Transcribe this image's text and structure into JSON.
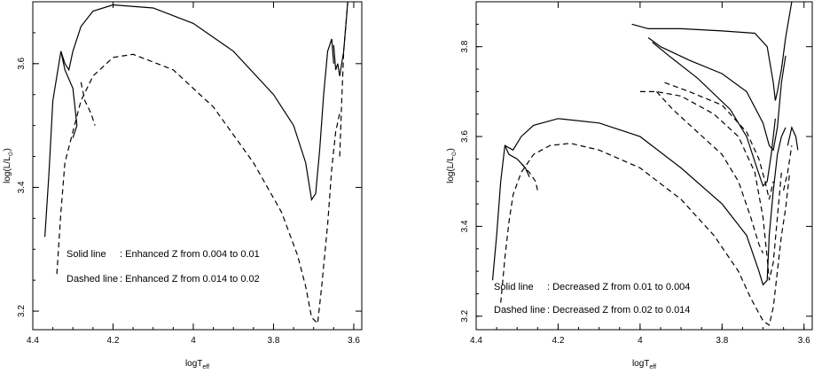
{
  "chart_data": [
    {
      "type": "line",
      "xlabel": "logT",
      "xlabel_sub": "eff",
      "ylabel": "log(L/L",
      "ylabel_sub": "⊙",
      "ylabel_close": ")",
      "xlim": [
        4.4,
        3.58
      ],
      "ylim": [
        3.17,
        3.7
      ],
      "x_ticks": [
        4.4,
        4.2,
        4.0,
        3.8,
        3.6
      ],
      "x_tick_labels": [
        "4.4",
        "4.2",
        "4",
        "3.8",
        "3.6"
      ],
      "y_ticks": [
        3.2,
        3.4,
        3.6
      ],
      "y_tick_labels": [
        "3.2",
        "3.4",
        "3.6"
      ],
      "annotations": [
        {
          "label": "Solid line",
          "text": ": Enhanced Z from 0.004 to 0.01"
        },
        {
          "label": "Dashed line",
          "text": ": Enhanced Z from 0.014 to 0.02"
        }
      ],
      "series": [
        {
          "style": "solid",
          "points": [
            [
              4.37,
              3.32
            ],
            [
              4.36,
              3.42
            ],
            [
              4.35,
              3.54
            ],
            [
              4.33,
              3.62
            ],
            [
              4.32,
              3.6
            ],
            [
              4.31,
              3.59
            ],
            [
              4.3,
              3.62
            ],
            [
              4.28,
              3.66
            ],
            [
              4.25,
              3.685
            ],
            [
              4.2,
              3.695
            ],
            [
              4.1,
              3.69
            ],
            [
              4.0,
              3.665
            ],
            [
              3.9,
              3.62
            ],
            [
              3.8,
              3.55
            ],
            [
              3.75,
              3.5
            ],
            [
              3.72,
              3.44
            ],
            [
              3.705,
              3.38
            ],
            [
              3.695,
              3.39
            ],
            [
              3.685,
              3.46
            ],
            [
              3.675,
              3.55
            ],
            [
              3.665,
              3.62
            ],
            [
              3.655,
              3.64
            ],
            [
              3.65,
              3.6
            ]
          ]
        },
        {
          "style": "solid",
          "points": [
            [
              4.33,
              3.62
            ],
            [
              4.32,
              3.59
            ],
            [
              4.3,
              3.56
            ],
            [
              4.29,
              3.5
            ],
            [
              4.3,
              3.48
            ]
          ]
        },
        {
          "style": "solid",
          "points": [
            [
              3.64,
              3.6
            ],
            [
              3.64,
              3.6
            ],
            [
              3.635,
              3.58
            ],
            [
              3.625,
              3.62
            ],
            [
              3.615,
              3.7
            ]
          ]
        },
        {
          "style": "solid",
          "points": [
            [
              3.65,
              3.63
            ],
            [
              3.645,
              3.59
            ],
            [
              3.64,
              3.6
            ]
          ]
        },
        {
          "style": "dashed",
          "points": [
            [
              4.34,
              3.26
            ],
            [
              4.33,
              3.36
            ],
            [
              4.32,
              3.44
            ],
            [
              4.3,
              3.49
            ],
            [
              4.28,
              3.54
            ],
            [
              4.25,
              3.58
            ],
            [
              4.2,
              3.61
            ],
            [
              4.15,
              3.615
            ],
            [
              4.05,
              3.59
            ],
            [
              3.95,
              3.53
            ],
            [
              3.85,
              3.44
            ],
            [
              3.78,
              3.36
            ],
            [
              3.74,
              3.29
            ],
            [
              3.72,
              3.24
            ],
            [
              3.705,
              3.19
            ],
            [
              3.69,
              3.18
            ],
            [
              3.68,
              3.24
            ],
            [
              3.665,
              3.34
            ],
            [
              3.655,
              3.43
            ],
            [
              3.645,
              3.49
            ],
            [
              3.635,
              3.52
            ]
          ]
        },
        {
          "style": "dashed",
          "points": [
            [
              4.28,
              3.57
            ],
            [
              4.27,
              3.54
            ],
            [
              4.255,
              3.52
            ],
            [
              4.245,
              3.5
            ]
          ]
        },
        {
          "style": "dashed",
          "points": [
            [
              3.635,
              3.45
            ],
            [
              3.63,
              3.54
            ],
            [
              3.625,
              3.62
            ],
            [
              3.615,
              3.7
            ]
          ]
        }
      ]
    },
    {
      "type": "line",
      "xlabel": "logT",
      "xlabel_sub": "eff",
      "ylabel": "log(L/L",
      "ylabel_sub": "⊙",
      "ylabel_close": ")",
      "xlim": [
        4.4,
        3.58
      ],
      "ylim": [
        3.17,
        3.9
      ],
      "x_ticks": [
        4.4,
        4.2,
        4.0,
        3.8,
        3.6
      ],
      "x_tick_labels": [
        "4.4",
        "4.2",
        "4",
        "3.8",
        "3.6"
      ],
      "y_ticks": [
        3.2,
        3.4,
        3.6,
        3.8
      ],
      "y_tick_labels": [
        "3.2",
        "3.4",
        "3.6",
        "3.8"
      ],
      "annotations": [
        {
          "label": "Solid line",
          "text": ": Decreased Z from 0.01 to 0.004"
        },
        {
          "label": "Dashed line",
          "text": ": Decreased Z from 0.02 to 0.014"
        }
      ],
      "series": [
        {
          "style": "solid",
          "points": [
            [
              4.36,
              3.28
            ],
            [
              4.35,
              3.38
            ],
            [
              4.34,
              3.5
            ],
            [
              4.33,
              3.58
            ],
            [
              4.31,
              3.57
            ],
            [
              4.29,
              3.6
            ],
            [
              4.26,
              3.625
            ],
            [
              4.2,
              3.64
            ],
            [
              4.1,
              3.63
            ],
            [
              4.0,
              3.6
            ],
            [
              3.9,
              3.53
            ],
            [
              3.8,
              3.45
            ],
            [
              3.74,
              3.38
            ],
            [
              3.71,
              3.3
            ],
            [
              3.7,
              3.27
            ],
            [
              3.69,
              3.28
            ],
            [
              3.685,
              3.38
            ],
            [
              3.675,
              3.48
            ],
            [
              3.665,
              3.56
            ],
            [
              3.655,
              3.6
            ],
            [
              3.645,
              3.62
            ]
          ]
        },
        {
          "style": "solid",
          "points": [
            [
              4.33,
              3.58
            ],
            [
              4.32,
              3.56
            ],
            [
              4.3,
              3.55
            ],
            [
              4.28,
              3.53
            ],
            [
              4.27,
              3.51
            ]
          ]
        },
        {
          "style": "solid",
          "points": [
            [
              4.02,
              3.85
            ],
            [
              3.98,
              3.84
            ],
            [
              3.9,
              3.84
            ],
            [
              3.8,
              3.835
            ],
            [
              3.72,
              3.83
            ],
            [
              3.69,
              3.8
            ],
            [
              3.675,
              3.72
            ],
            [
              3.67,
              3.68
            ],
            [
              3.665,
              3.7
            ],
            [
              3.655,
              3.75
            ],
            [
              3.645,
              3.82
            ],
            [
              3.63,
              3.9
            ]
          ]
        },
        {
          "style": "solid",
          "points": [
            [
              3.98,
              3.82
            ],
            [
              3.95,
              3.8
            ],
            [
              3.88,
              3.77
            ],
            [
              3.8,
              3.74
            ],
            [
              3.74,
              3.7
            ],
            [
              3.7,
              3.63
            ],
            [
              3.685,
              3.58
            ],
            [
              3.675,
              3.57
            ],
            [
              3.665,
              3.62
            ],
            [
              3.655,
              3.72
            ],
            [
              3.645,
              3.78
            ]
          ]
        },
        {
          "style": "solid",
          "points": [
            [
              3.97,
              3.81
            ],
            [
              3.93,
              3.78
            ],
            [
              3.86,
              3.73
            ],
            [
              3.78,
              3.66
            ],
            [
              3.74,
              3.6
            ],
            [
              3.715,
              3.53
            ],
            [
              3.7,
              3.49
            ],
            [
              3.69,
              3.5
            ],
            [
              3.68,
              3.56
            ],
            [
              3.67,
              3.64
            ]
          ]
        },
        {
          "style": "solid",
          "points": [
            [
              3.64,
              3.58
            ],
            [
              3.63,
              3.62
            ],
            [
              3.62,
              3.6
            ],
            [
              3.615,
              3.57
            ]
          ]
        },
        {
          "style": "dashed",
          "points": [
            [
              4.34,
              3.23
            ],
            [
              4.33,
              3.33
            ],
            [
              4.32,
              3.41
            ],
            [
              4.31,
              3.47
            ],
            [
              4.29,
              3.52
            ],
            [
              4.26,
              3.56
            ],
            [
              4.22,
              3.58
            ],
            [
              4.17,
              3.585
            ],
            [
              4.1,
              3.57
            ],
            [
              4.0,
              3.53
            ],
            [
              3.9,
              3.46
            ],
            [
              3.82,
              3.38
            ],
            [
              3.76,
              3.3
            ],
            [
              3.73,
              3.24
            ],
            [
              3.7,
              3.19
            ],
            [
              3.685,
              3.18
            ],
            [
              3.675,
              3.22
            ],
            [
              3.665,
              3.3
            ],
            [
              3.655,
              3.38
            ],
            [
              3.645,
              3.44
            ],
            [
              3.635,
              3.52
            ]
          ]
        },
        {
          "style": "dashed",
          "points": [
            [
              4.29,
              3.54
            ],
            [
              4.27,
              3.52
            ],
            [
              4.255,
              3.5
            ],
            [
              4.25,
              3.48
            ]
          ]
        },
        {
          "style": "dashed",
          "points": [
            [
              4.0,
              3.7
            ],
            [
              3.96,
              3.7
            ],
            [
              3.9,
              3.69
            ],
            [
              3.82,
              3.65
            ],
            [
              3.76,
              3.6
            ],
            [
              3.72,
              3.52
            ],
            [
              3.7,
              3.42
            ],
            [
              3.69,
              3.33
            ],
            [
              3.685,
              3.28
            ],
            [
              3.675,
              3.32
            ],
            [
              3.665,
              3.42
            ],
            [
              3.655,
              3.52
            ]
          ]
        },
        {
          "style": "dashed",
          "points": [
            [
              3.96,
              3.7
            ],
            [
              3.92,
              3.66
            ],
            [
              3.86,
              3.61
            ],
            [
              3.8,
              3.56
            ],
            [
              3.76,
              3.5
            ],
            [
              3.73,
              3.42
            ],
            [
              3.71,
              3.36
            ],
            [
              3.7,
              3.34
            ]
          ]
        },
        {
          "style": "dashed",
          "points": [
            [
              3.94,
              3.72
            ],
            [
              3.88,
              3.7
            ],
            [
              3.8,
              3.67
            ],
            [
              3.74,
              3.61
            ],
            [
              3.71,
              3.55
            ],
            [
              3.695,
              3.5
            ],
            [
              3.685,
              3.46
            ],
            [
              3.675,
              3.5
            ]
          ]
        },
        {
          "style": "dashed",
          "points": [
            [
              3.65,
              3.48
            ],
            [
              3.64,
              3.52
            ],
            [
              3.63,
              3.58
            ]
          ]
        }
      ]
    }
  ]
}
